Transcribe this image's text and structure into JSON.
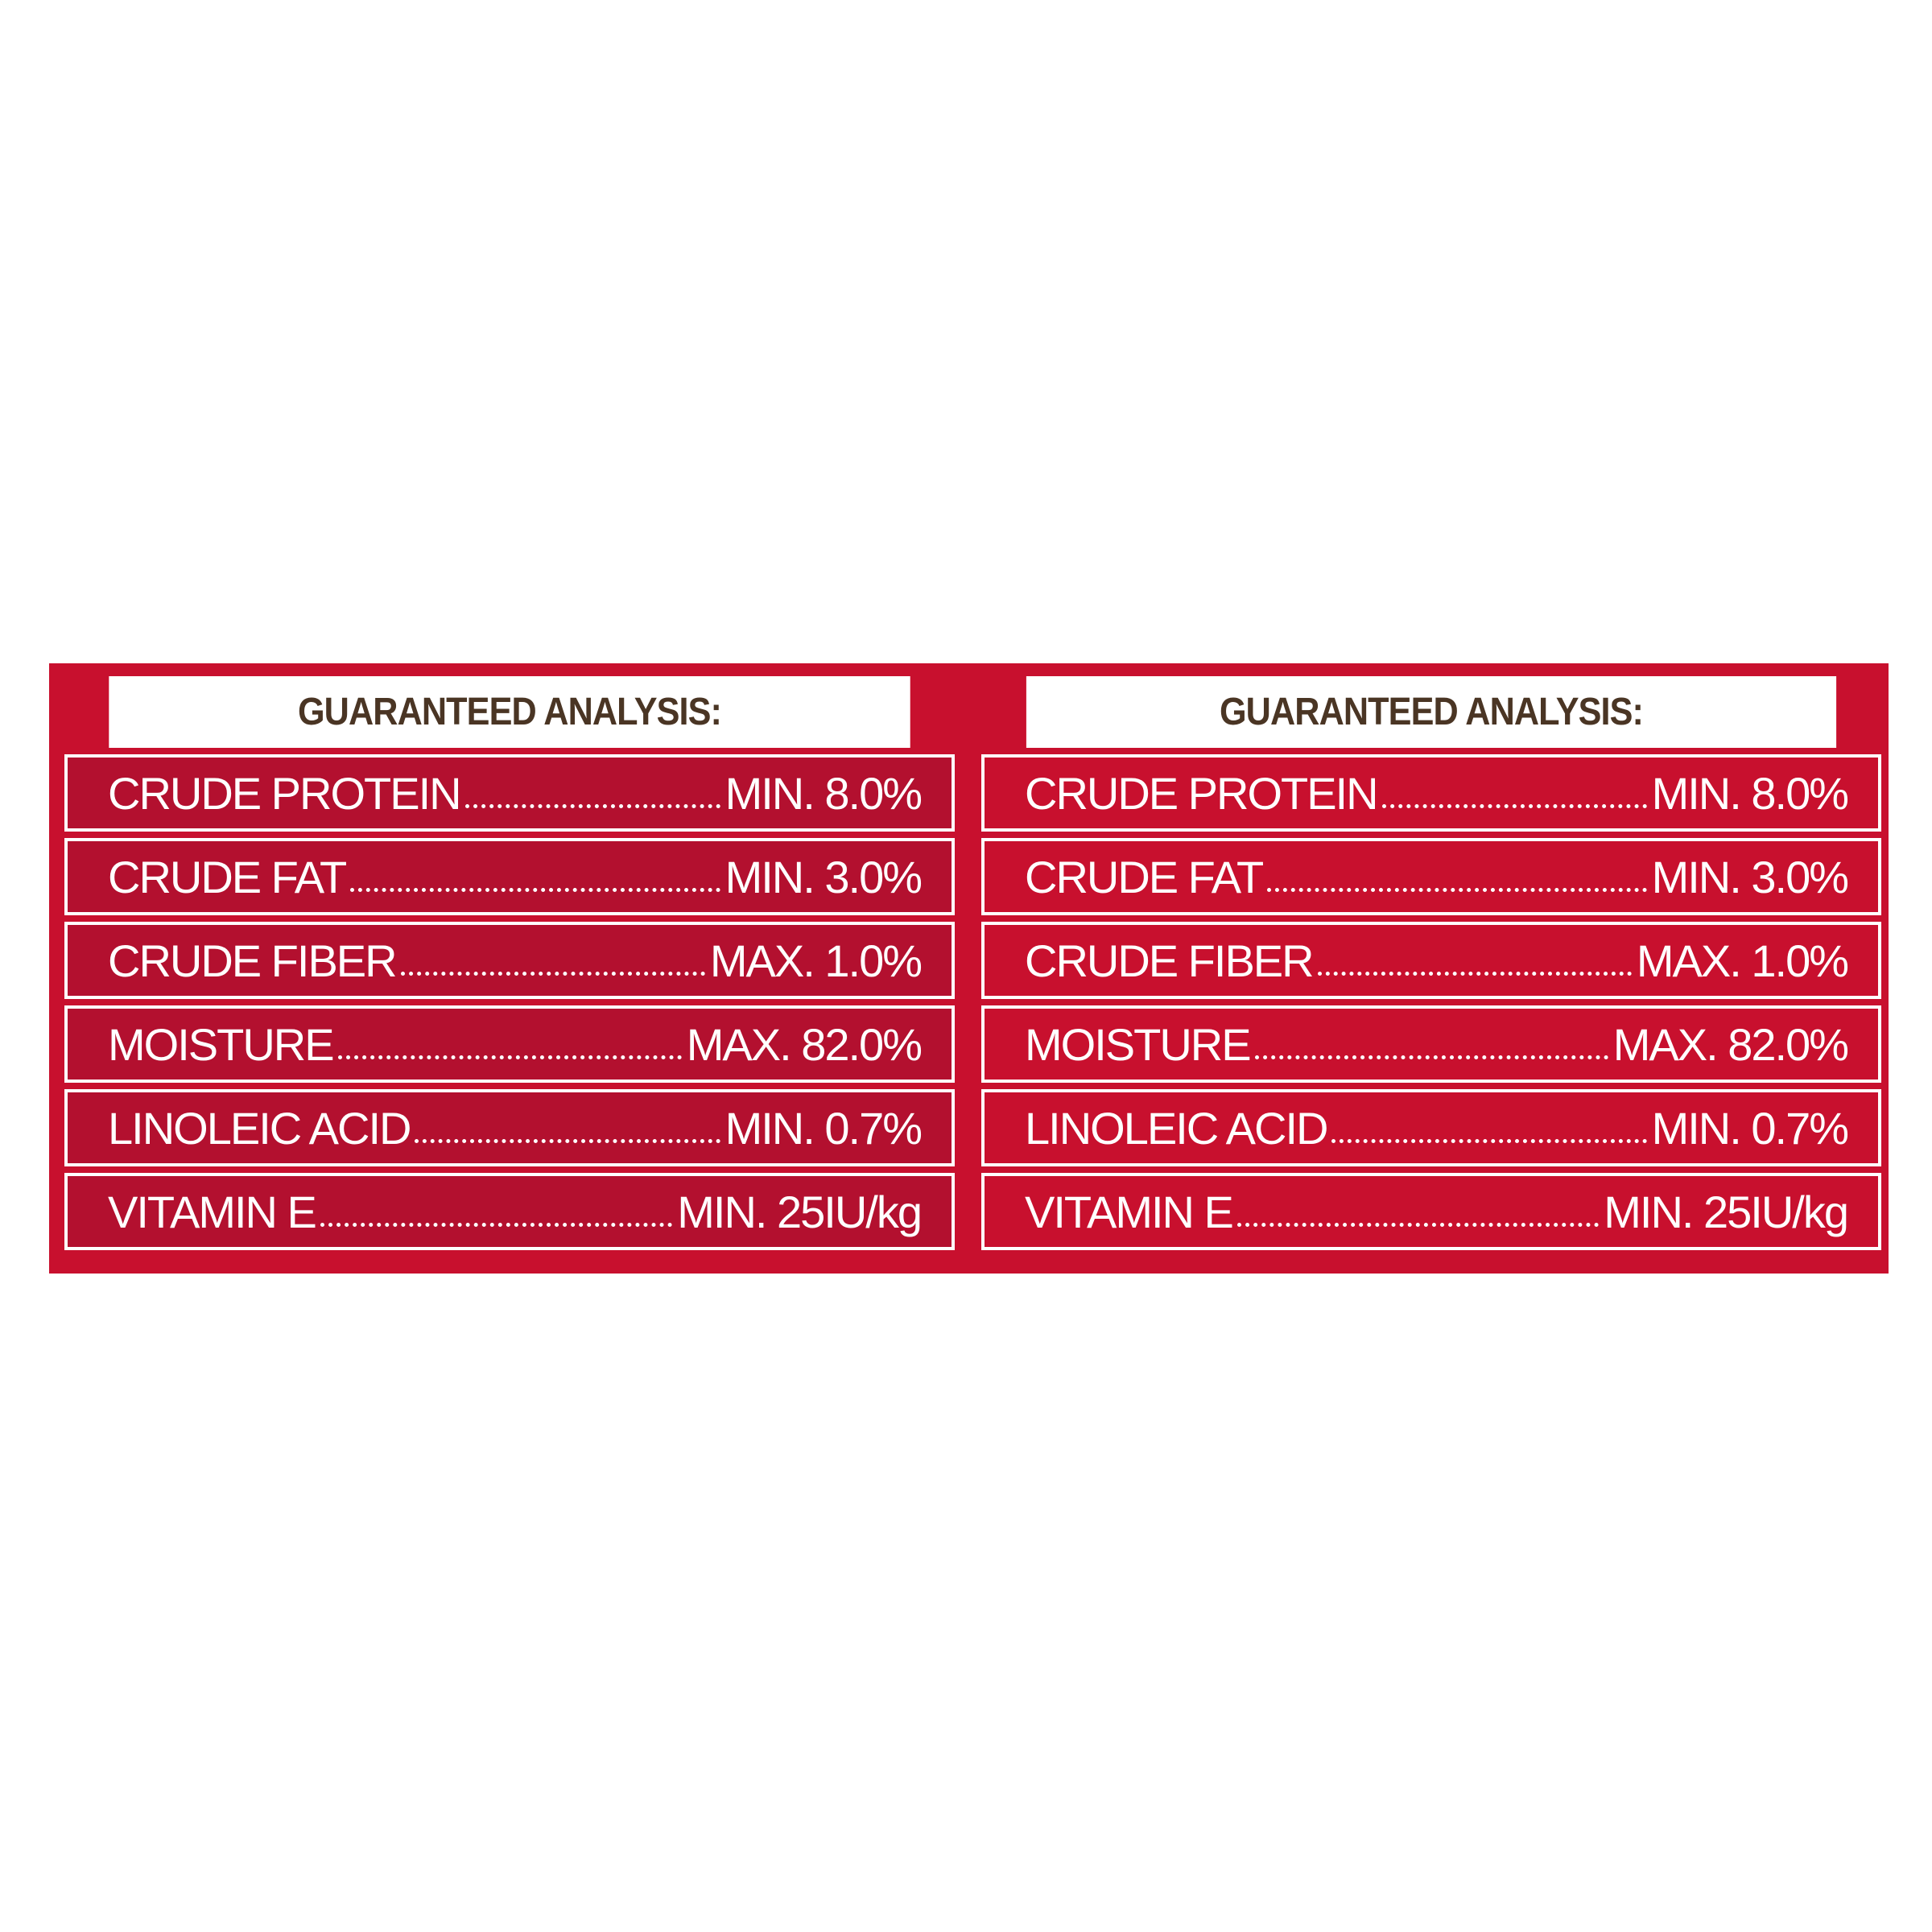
{
  "panels": [
    {
      "title": "GUARANTEED ANALYSIS:",
      "rows": [
        {
          "name": "CRUDE PROTEIN",
          "value": "MIN. 8.0%"
        },
        {
          "name": "CRUDE FAT",
          "value": "MIN. 3.0%"
        },
        {
          "name": "CRUDE FIBER",
          "value": "MAX. 1.0%"
        },
        {
          "name": "MOISTURE",
          "value": "MAX. 82.0%"
        },
        {
          "name": "LINOLEIC ACID",
          "value": "MIN. 0.7%"
        },
        {
          "name": "VITAMIN E",
          "value": "MIN. 25IU/kg"
        }
      ]
    },
    {
      "title": "GUARANTEED ANALYSIS:",
      "rows": [
        {
          "name": "CRUDE PROTEIN",
          "value": "MIN. 8.0%"
        },
        {
          "name": "CRUDE FAT",
          "value": "MIN. 3.0%"
        },
        {
          "name": "CRUDE FIBER",
          "value": "MAX. 1.0%"
        },
        {
          "name": "MOISTURE",
          "value": "MAX. 82.0%"
        },
        {
          "name": "LINOLEIC ACID",
          "value": "MIN. 0.7%"
        },
        {
          "name": "VITAMIN E",
          "value": "MIN. 25IU/kg"
        }
      ]
    }
  ]
}
